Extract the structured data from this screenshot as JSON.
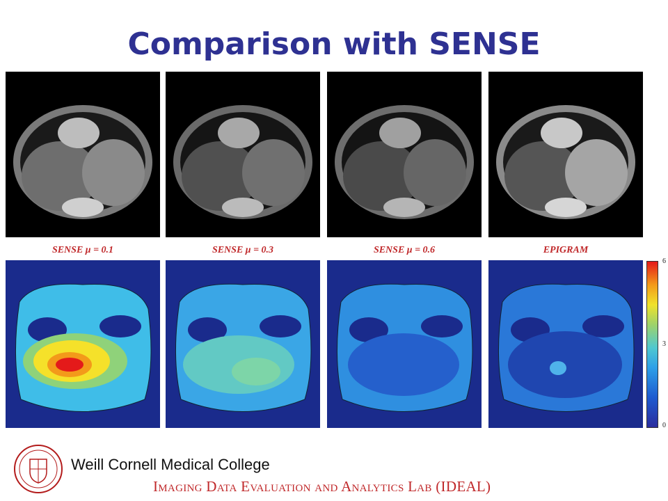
{
  "slide": {
    "title": "Comparison with SENSE",
    "captions": [
      "SENSE μ = 0.1",
      "SENSE μ = 0.3",
      "SENSE μ = 0.6",
      "EPIGRAM"
    ],
    "colorbar": {
      "max": "6",
      "mid": "3",
      "min": "0"
    }
  },
  "footer": {
    "college": "Weill Cornell Medical College",
    "lab": "Imaging Data Evaluation and Analytics Lab (IDEAL)"
  },
  "colors": {
    "title": "#2e3192",
    "caption": "#c0282a",
    "lab": "#c0282a"
  },
  "icons": {
    "logo": "cornell-seal-icon"
  }
}
